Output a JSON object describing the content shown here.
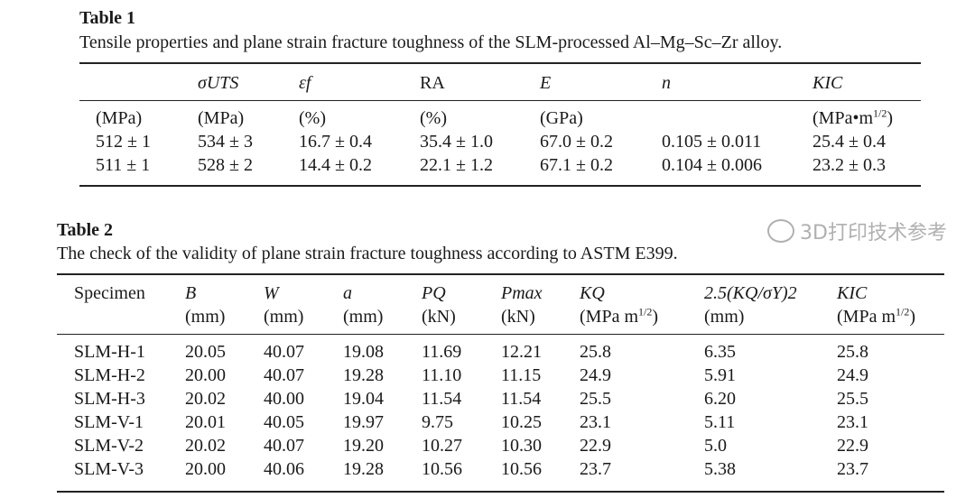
{
  "table1": {
    "label": "Table 1",
    "caption": "Tensile properties and plane strain fracture toughness of the SLM-processed Al–Mg–Sc–Zr alloy.",
    "headers": [
      "",
      "σUTS",
      "εf",
      "RA",
      "E",
      "n",
      "KIC"
    ],
    "units": [
      "(MPa)",
      "(MPa)",
      "(%)",
      "(%)",
      "(GPa)",
      "",
      "(MPa•m1/2)"
    ],
    "rows": [
      [
        "512 ± 1",
        "534 ± 3",
        "16.7 ± 0.4",
        "35.4 ± 1.0",
        "67.0 ± 0.2",
        "0.105 ± 0.011",
        "25.4 ± 0.4"
      ],
      [
        "511 ± 1",
        "528 ± 2",
        "14.4 ± 0.2",
        "22.1 ± 1.2",
        "67.1 ± 0.2",
        "0.104 ± 0.006",
        "23.2 ± 0.3"
      ]
    ]
  },
  "table2": {
    "label": "Table 2",
    "caption": "The check of the validity of plane strain fracture toughness according to ASTM E399.",
    "headers": [
      "Specimen",
      "B",
      "W",
      "a",
      "PQ",
      "Pmax",
      "KQ",
      "2.5(KQ/σY)2",
      "KIC"
    ],
    "units": [
      "",
      "(mm)",
      "(mm)",
      "(mm)",
      "(kN)",
      "(kN)",
      "(MPa m1/2)",
      "(mm)",
      "(MPa m1/2)"
    ],
    "rows": [
      [
        "SLM-H-1",
        "20.05",
        "40.07",
        "19.08",
        "11.69",
        "12.21",
        "25.8",
        "6.35",
        "25.8"
      ],
      [
        "SLM-H-2",
        "20.00",
        "40.07",
        "19.28",
        "11.10",
        "11.15",
        "24.9",
        "5.91",
        "24.9"
      ],
      [
        "SLM-H-3",
        "20.02",
        "40.00",
        "19.04",
        "11.54",
        "11.54",
        "25.5",
        "6.20",
        "25.5"
      ],
      [
        "SLM-V-1",
        "20.01",
        "40.05",
        "19.97",
        "9.75",
        "10.25",
        "23.1",
        "5.11",
        "23.1"
      ],
      [
        "SLM-V-2",
        "20.02",
        "40.07",
        "19.20",
        "10.27",
        "10.30",
        "22.9",
        "5.0",
        "22.9"
      ],
      [
        "SLM-V-3",
        "20.00",
        "40.06",
        "19.28",
        "10.56",
        "10.56",
        "23.7",
        "5.38",
        "23.7"
      ]
    ]
  },
  "watermark": "3D打印技术参考"
}
